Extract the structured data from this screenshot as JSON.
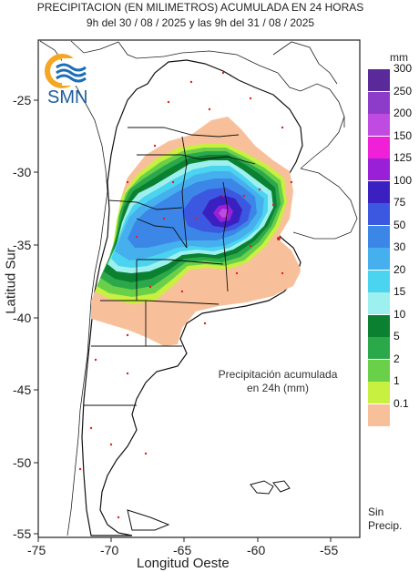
{
  "header": {
    "title_line1": "PRECIPITACION (EN MILIMETROS) ACUMULADA EN 24 HORAS",
    "title_line2": "9h del 30 / 08 / 2025  y las 9h del 31 / 08 / 2025"
  },
  "logo": {
    "text": "SMN"
  },
  "axes": {
    "xlabel": "Longitud Oeste",
    "ylabel": "Latitud Sur",
    "xticks": [
      "-75",
      "-70",
      "-65",
      "-60",
      "-55"
    ],
    "yticks": [
      "-25",
      "-30",
      "-35",
      "-40",
      "-45",
      "-50",
      "-55"
    ]
  },
  "annotation": {
    "line1": "Precipitación acumulada",
    "line2": "en 24h (mm)"
  },
  "legend": {
    "unit": "mm",
    "no_precip_label_1": "Sin",
    "no_precip_label_2": "Precip.",
    "levels": [
      {
        "label": "300",
        "color": "#5a2a9a"
      },
      {
        "label": "250",
        "color": "#8c3cc8"
      },
      {
        "label": "200",
        "color": "#c04be0"
      },
      {
        "label": "150",
        "color": "#f020d8"
      },
      {
        "label": "125",
        "color": "#9a20d8"
      },
      {
        "label": "100",
        "color": "#3a20c0"
      },
      {
        "label": "75",
        "color": "#3c58e0"
      },
      {
        "label": "50",
        "color": "#3c86e8"
      },
      {
        "label": "30",
        "color": "#46b0ee"
      },
      {
        "label": "20",
        "color": "#4ad4f0"
      },
      {
        "label": "15",
        "color": "#9ef0ee"
      },
      {
        "label": "10",
        "color": "#0a8030"
      },
      {
        "label": "5",
        "color": "#2aa84a"
      },
      {
        "label": "2",
        "color": "#6ad04a"
      },
      {
        "label": "1",
        "color": "#c8f040"
      },
      {
        "label": "0.1",
        "color": "#f8c09a"
      }
    ]
  }
}
